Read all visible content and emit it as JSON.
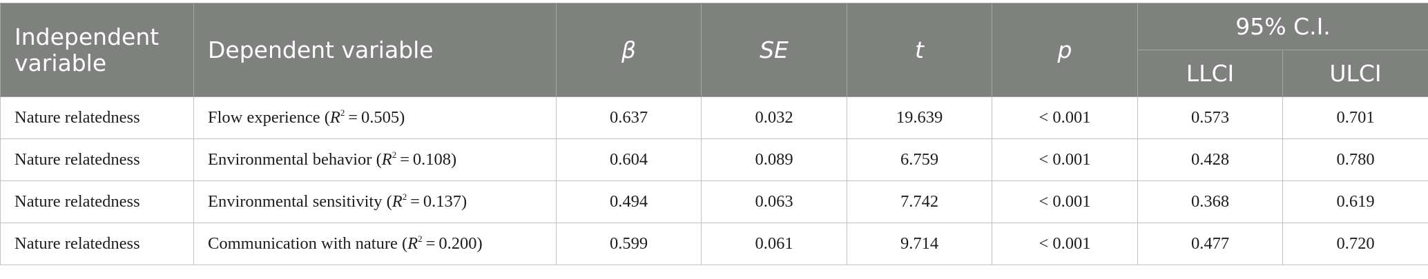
{
  "table": {
    "headers": {
      "independent_variable": "Independent variable",
      "dependent_variable": "Dependent variable",
      "beta": "β",
      "se": "SE",
      "t": "t",
      "p": "p",
      "ci_group": "95% C.I.",
      "llci": "LLCI",
      "ulci": "ULCI"
    },
    "rows": [
      {
        "independent": "Nature relatedness",
        "dependent_label": "Flow experience",
        "r2_value": "0.505",
        "beta": "0.637",
        "se": "0.032",
        "t": "19.639",
        "p": "< 0.001",
        "llci": "0.573",
        "ulci": "0.701"
      },
      {
        "independent": "Nature relatedness",
        "dependent_label": "Environmental behavior",
        "r2_value": "0.108",
        "beta": "0.604",
        "se": "0.089",
        "t": "6.759",
        "p": "< 0.001",
        "llci": "0.428",
        "ulci": "0.780"
      },
      {
        "independent": "Nature relatedness",
        "dependent_label": "Environmental sensitivity",
        "r2_value": "0.137",
        "beta": "0.494",
        "se": "0.063",
        "t": "7.742",
        "p": "< 0.001",
        "llci": "0.368",
        "ulci": "0.619"
      },
      {
        "independent": "Nature relatedness",
        "dependent_label": "Communication with nature",
        "r2_value": "0.200",
        "beta": "0.599",
        "se": "0.061",
        "t": "9.714",
        "p": "< 0.001",
        "llci": "0.477",
        "ulci": "0.720"
      }
    ]
  }
}
